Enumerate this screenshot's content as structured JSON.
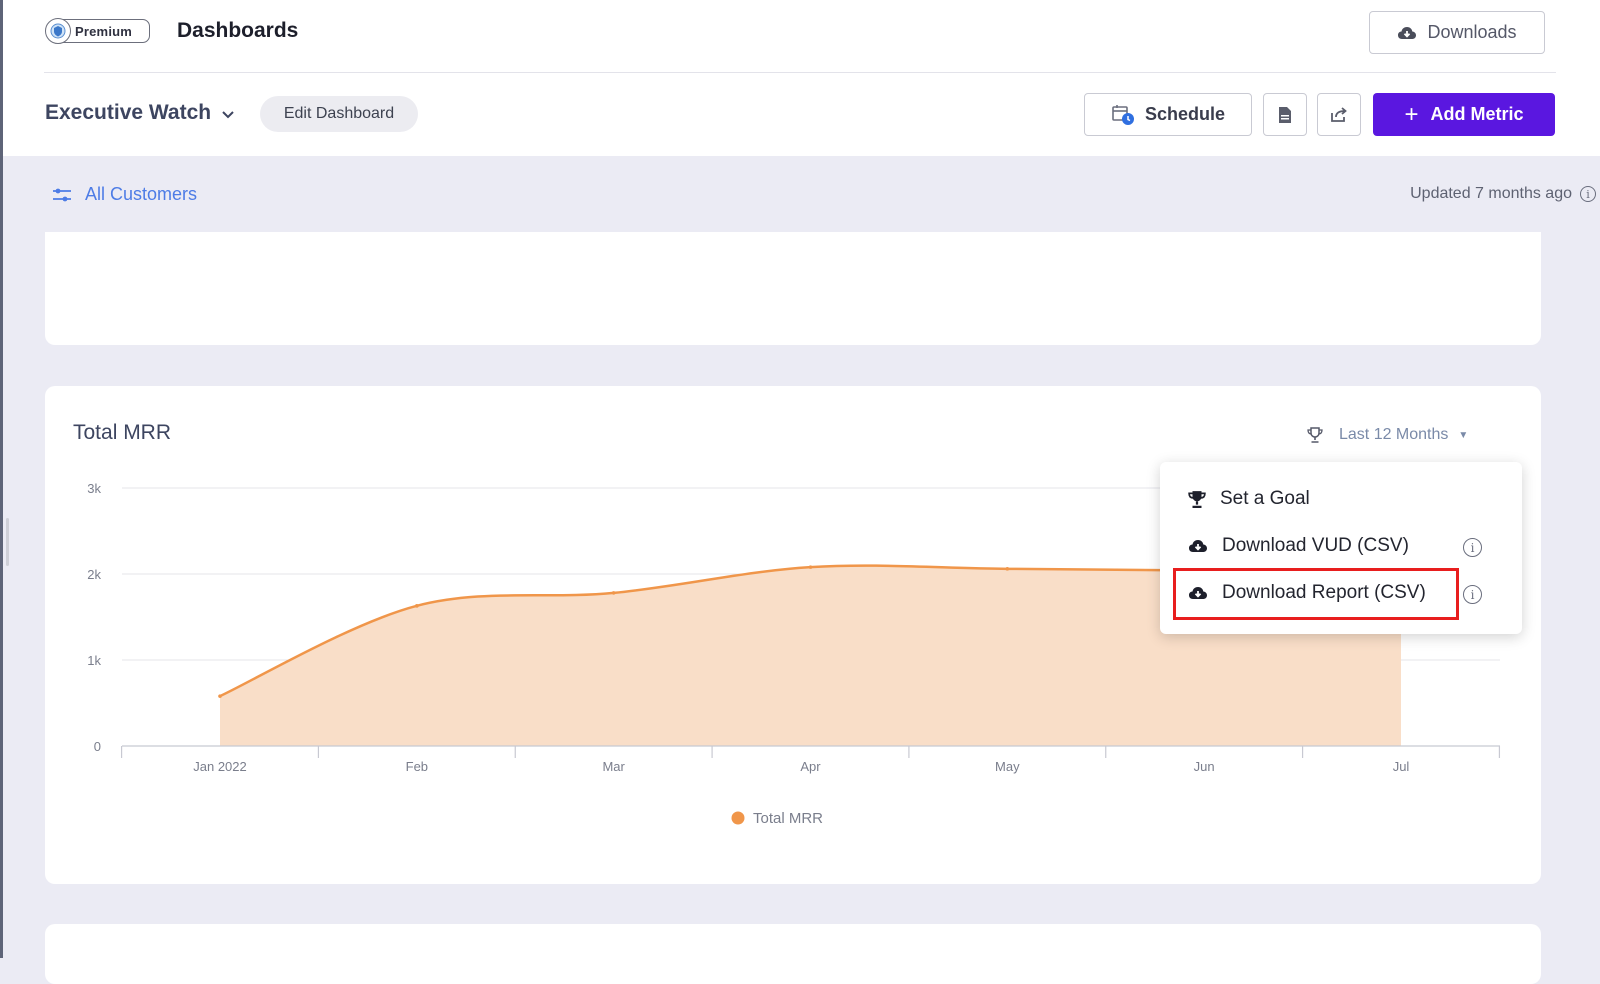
{
  "header": {
    "badge": "Premium",
    "title": "Dashboards",
    "downloads_label": "Downloads"
  },
  "toolbar": {
    "dashboard_name": "Executive Watch",
    "edit_label": "Edit Dashboard",
    "schedule_label": "Schedule",
    "add_metric_label": "Add Metric",
    "accent_color": "#5a17e0"
  },
  "filter": {
    "label": "All Customers",
    "updated": "Updated 7 months ago"
  },
  "metric_card": {
    "title": "Total MRR",
    "period": "Last 12 Months"
  },
  "menu": {
    "items": [
      {
        "label": "Set a Goal",
        "icon": "trophy-icon"
      },
      {
        "label": "Download VUD (CSV)",
        "icon": "cloud-download-icon"
      },
      {
        "label": "Download Report (CSV)",
        "icon": "cloud-download-icon"
      }
    ],
    "highlighted": "Download Report (CSV)"
  },
  "chart_data": {
    "type": "area",
    "title": "",
    "x": [
      "Jan 2022",
      "Feb",
      "Mar",
      "Apr",
      "May",
      "Jun",
      "Jul"
    ],
    "series": [
      {
        "name": "Total MRR",
        "values": [
          580,
          1630,
          1780,
          2080,
          2060,
          2040,
          2000
        ],
        "color": "#f0964a",
        "fill": "#f9dec8"
      }
    ],
    "yticks": [
      "0",
      "1k",
      "2k",
      "3k"
    ],
    "ylim": [
      0,
      3000
    ],
    "grid": true,
    "legend": "bottom-center"
  }
}
